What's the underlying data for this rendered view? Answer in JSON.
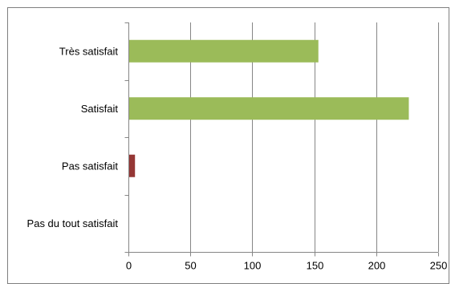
{
  "chart_data": {
    "type": "bar",
    "orientation": "horizontal",
    "title": "",
    "xlabel": "",
    "ylabel": "",
    "categories": [
      "Très satisfait",
      "Satisfait",
      "Pas satisfait",
      "Pas du tout satisfait"
    ],
    "values": [
      153,
      226,
      5,
      0
    ],
    "colors": [
      "#9bbb59",
      "#9bbb59",
      "#953735",
      "#9bbb59"
    ],
    "xlim": [
      0,
      250
    ],
    "xticks": [
      0,
      50,
      100,
      150,
      200,
      250
    ],
    "grid": true,
    "legend": "none"
  }
}
